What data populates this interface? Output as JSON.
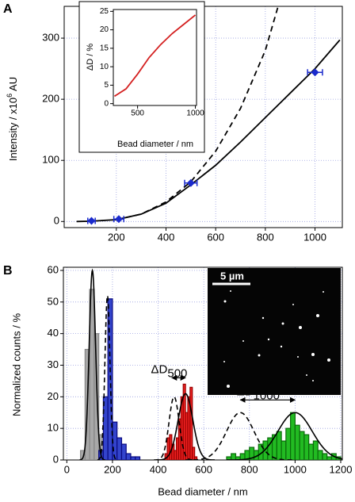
{
  "chart_data": [
    {
      "type": "scatter",
      "panel": "A",
      "xlim": [
        -10,
        1110
      ],
      "ylim": [
        -10,
        352
      ],
      "xticks": [
        200,
        400,
        600,
        800,
        1000
      ],
      "yticks": [
        0,
        100,
        200,
        300
      ],
      "grid": true,
      "ylabel": [
        "Intensity / x10",
        "6",
        " AU"
      ],
      "points": {
        "color": "#1a2acc",
        "x": [
          100,
          210,
          500,
          1000
        ],
        "values": [
          1,
          4,
          63,
          244
        ],
        "xerr": [
          15,
          20,
          25,
          30
        ]
      },
      "lines": [
        {
          "color": "#000",
          "dash": false,
          "x": [
            40,
            100,
            200,
            300,
            400,
            500,
            600,
            700,
            800,
            900,
            1000,
            1100
          ],
          "values": [
            0,
            0.5,
            3,
            12,
            30,
            60,
            92,
            130,
            170,
            210,
            250,
            297
          ]
        },
        {
          "color": "#000",
          "dash": true,
          "x": [
            200,
            300,
            400,
            500,
            600,
            700,
            800,
            850
          ],
          "values": [
            3,
            12,
            32,
            65,
            115,
            185,
            280,
            350
          ]
        }
      ]
    },
    {
      "type": "line",
      "xlim": [
        290,
        1010
      ],
      "ylim": [
        -0.5,
        25.5
      ],
      "xticks": [
        500,
        1000
      ],
      "yticks": [
        0,
        5,
        10,
        15,
        20,
        25
      ],
      "grid": false,
      "xlabel": "Bead diameter / nm",
      "ylabel": "ΔD / %",
      "lines": [
        {
          "color": "#d42020",
          "dash": false,
          "x": [
            300,
            400,
            500,
            600,
            700,
            800,
            900,
            1000
          ],
          "values": [
            2,
            4,
            8,
            12.5,
            16,
            19,
            21.5,
            24
          ]
        }
      ]
    },
    {
      "type": "histogram",
      "panel": "B",
      "xlim": [
        -15,
        1207
      ],
      "ylim": [
        0,
        61
      ],
      "xticks": [
        0,
        200,
        400,
        600,
        800,
        1000,
        1200
      ],
      "yticks": [
        0,
        10,
        20,
        30,
        40,
        50,
        60
      ],
      "grid": true,
      "xlabel": "Bead diameter / nm",
      "ylabel": "Normalized counts / %",
      "scalebar": "5 µm",
      "histograms": [
        {
          "color": "#a8a8a8",
          "edge": "#888",
          "bins": [
            60,
            80,
            100,
            120,
            140,
            160
          ],
          "counts": [
            3,
            35,
            54,
            40,
            8
          ]
        },
        {
          "color": "#3344cc",
          "edge": "#0a0a80",
          "bins": [
            140,
            160,
            180,
            200,
            220,
            240,
            260,
            280,
            300,
            320
          ],
          "counts": [
            3,
            20,
            51,
            12,
            7,
            5,
            2,
            1,
            1
          ]
        },
        {
          "color": "#ee2222",
          "edge": "#900",
          "bins": [
            430,
            440,
            450,
            460,
            470,
            480,
            490,
            500,
            510,
            520,
            530,
            540,
            550,
            560,
            570
          ],
          "counts": [
            2,
            7,
            8,
            5,
            3,
            7,
            13,
            20,
            24,
            15,
            20,
            23,
            4,
            1
          ]
        },
        {
          "color": "#22bb22",
          "edge": "#0a6a0a",
          "bins": [
            700,
            720,
            740,
            760,
            780,
            800,
            820,
            840,
            860,
            880,
            900,
            920,
            940,
            960,
            980,
            1000,
            1020,
            1040,
            1060,
            1080,
            1100,
            1120,
            1140,
            1160,
            1180,
            1200
          ],
          "counts": [
            1,
            2,
            1,
            2,
            3,
            4,
            3,
            5,
            6,
            7,
            8,
            9,
            6,
            10,
            15,
            11,
            9,
            8,
            5,
            6,
            3,
            2,
            1,
            2,
            1
          ]
        }
      ],
      "fits": [
        {
          "center": 112,
          "sigma": 14,
          "amplitude": 60,
          "dash": false
        },
        {
          "center": 178,
          "sigma": 11,
          "amplitude": 52,
          "dash": true
        },
        {
          "center": 520,
          "sigma": 32,
          "amplitude": 21,
          "dash": false
        },
        {
          "center": 470,
          "sigma": 22,
          "amplitude": 20,
          "dash": true
        },
        {
          "center": 1000,
          "sigma": 75,
          "amplitude": 15,
          "dash": false
        },
        {
          "center": 760,
          "sigma": 60,
          "amplitude": 15,
          "dash": true
        }
      ],
      "annotations": [
        {
          "label": "ΔD",
          "sub": "500",
          "x": [
            460,
            520
          ],
          "y": 26
        },
        {
          "label": "ΔD",
          "sub": "1000",
          "x": [
            760,
            1000
          ],
          "y": 19
        }
      ]
    }
  ]
}
